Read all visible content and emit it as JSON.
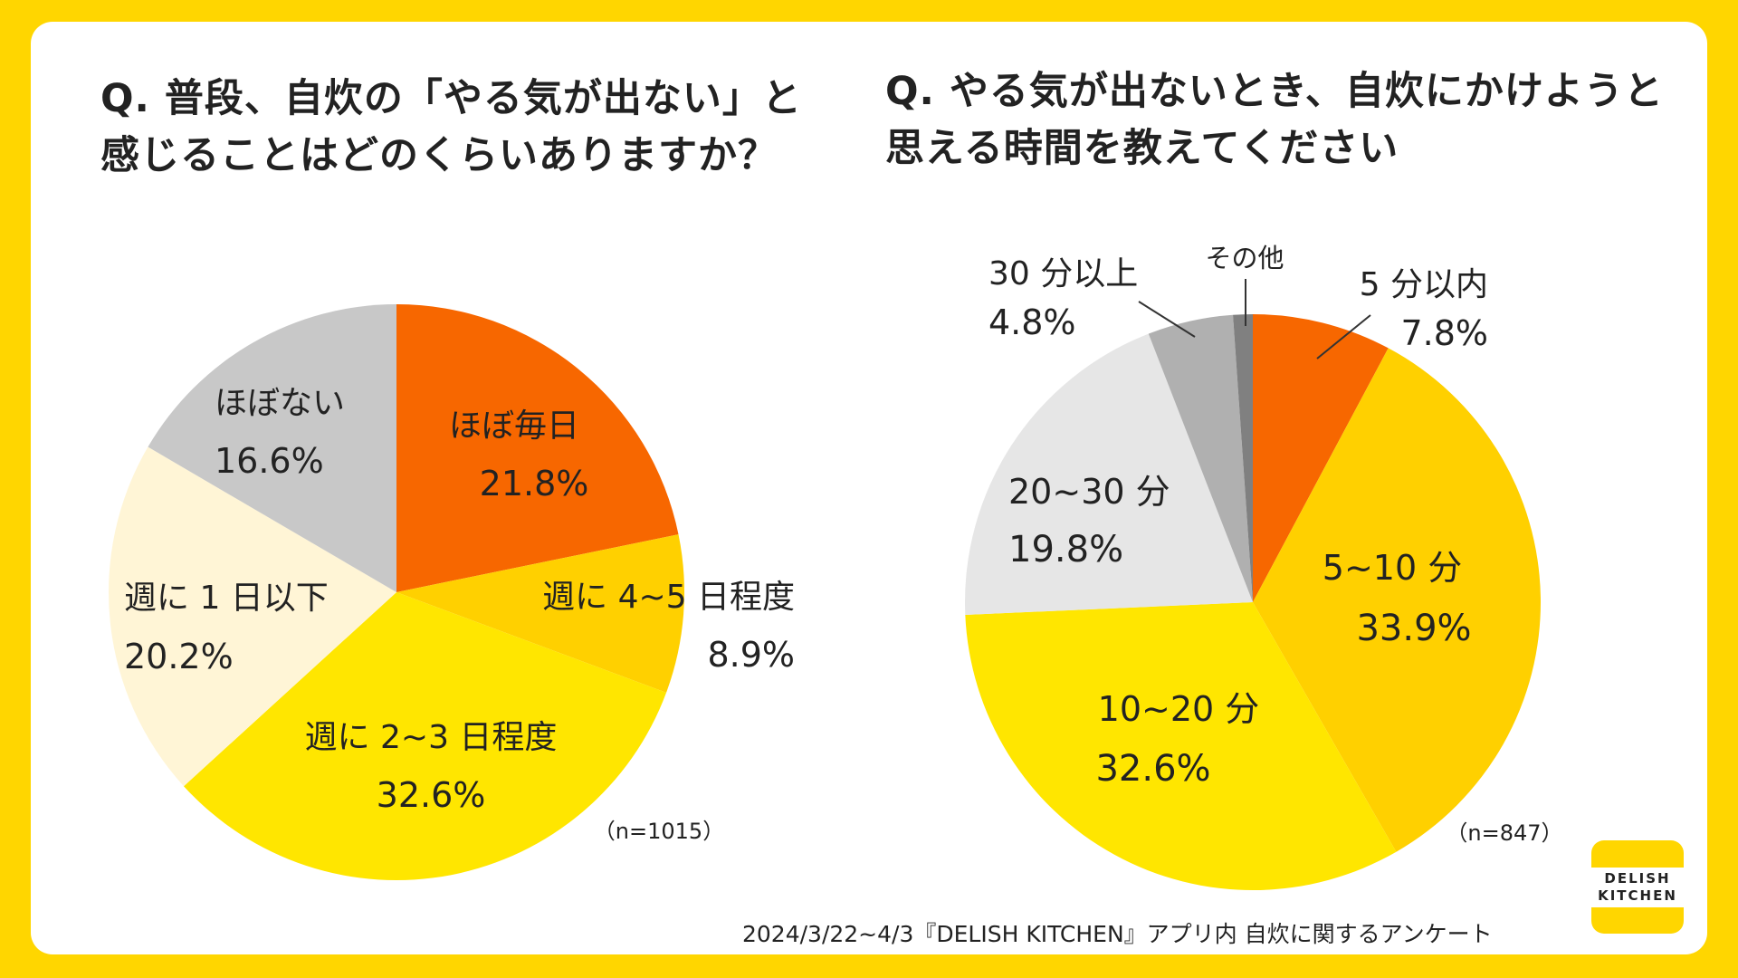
{
  "theme": {
    "background": "#FFD600",
    "card": "#FFFFFF",
    "text": "#222222",
    "leader": "#333333"
  },
  "chart_data": [
    {
      "type": "pie",
      "title": "Q. 普段、自炊の「やる気が出ない」と\n感じることはどのくらいありますか？",
      "sample_note": "（n=1015）",
      "start": "12 o'clock",
      "direction": "clockwise",
      "slices": [
        {
          "name": "ほぼ毎日",
          "value": 21.8,
          "value_label": "21.8%",
          "color": "#F76700"
        },
        {
          "name": "週に 4~5 日程度",
          "value": 8.9,
          "value_label": "8.9%",
          "color": "#FFD000"
        },
        {
          "name": "週に 2~3 日程度",
          "value": 32.6,
          "value_label": "32.6%",
          "color": "#FFE600"
        },
        {
          "name": "週に 1 日以下",
          "value": 20.2,
          "value_label": "20.2%",
          "color": "#FFF5D6"
        },
        {
          "name": "ほぼない",
          "value": 16.6,
          "value_label": "16.6%",
          "color": "#C8C8C8"
        }
      ]
    },
    {
      "type": "pie",
      "title": "Q. やる気が出ないとき、自炊にかけようと\n思える時間を教えてください",
      "sample_note": "（n=847）",
      "start": "12 o'clock",
      "direction": "clockwise",
      "slices": [
        {
          "name": "5 分以内",
          "value": 7.8,
          "value_label": "7.8%",
          "color": "#F76700"
        },
        {
          "name": "5~10 分",
          "value": 33.9,
          "value_label": "33.9%",
          "color": "#FFD000"
        },
        {
          "name": "10~20 分",
          "value": 32.6,
          "value_label": "32.6%",
          "color": "#FFE600"
        },
        {
          "name": "20~30 分",
          "value": 19.8,
          "value_label": "19.8%",
          "color": "#E6E6E6"
        },
        {
          "name": "30 分以上",
          "value": 4.8,
          "value_label": "4.8%",
          "color": "#B0B0B0"
        },
        {
          "name": "その他",
          "value": 1.1,
          "value_label": "",
          "color": "#808080"
        }
      ]
    }
  ],
  "footer": {
    "source": "2024/3/22~4/3『DELISH KITCHEN』アプリ内 自炊に関するアンケート"
  },
  "logo": {
    "line1": "DELISH",
    "line2": "KITCHEN"
  }
}
